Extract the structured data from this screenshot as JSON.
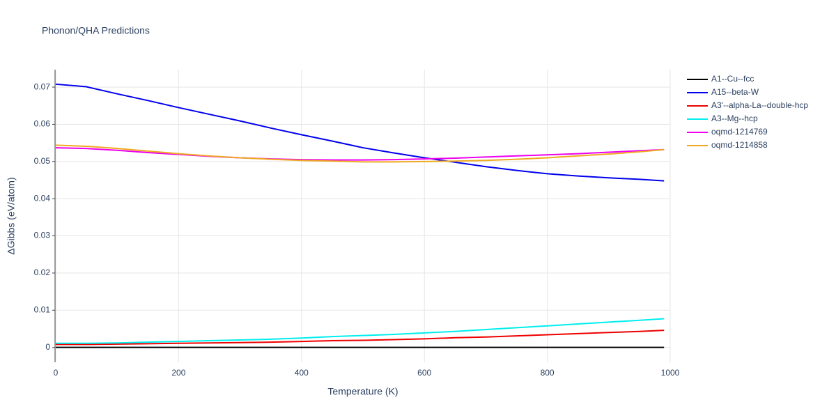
{
  "chart_data": {
    "type": "line",
    "title": "Phonon/QHA Predictions",
    "x_label": "Temperature (K)",
    "y_label": "ΔGibbs (eV/atom)",
    "x": [
      0,
      50,
      100,
      150,
      200,
      250,
      300,
      350,
      400,
      450,
      500,
      550,
      600,
      650,
      700,
      750,
      800,
      850,
      900,
      950,
      990
    ],
    "series": [
      {
        "name": "A1--Cu--fcc",
        "color": "#000000",
        "values": [
          0,
          0,
          0,
          0,
          0,
          0,
          0,
          0,
          0,
          0,
          0,
          0,
          0,
          0,
          0,
          0,
          0,
          0,
          0,
          0,
          0
        ]
      },
      {
        "name": "A15--beta-W",
        "color": "#0000ee",
        "values": [
          0.0708,
          0.0701,
          0.0682,
          0.0664,
          0.0645,
          0.0627,
          0.0609,
          0.059,
          0.0572,
          0.0555,
          0.0537,
          0.0523,
          0.051,
          0.0498,
          0.0486,
          0.0476,
          0.0467,
          0.0461,
          0.0456,
          0.0452,
          0.0448
        ]
      },
      {
        "name": "A3'--alpha-La--double-hcp",
        "color": "#ee0000",
        "values": [
          0.0008,
          0.0008,
          0.0009,
          0.001,
          0.0011,
          0.0012,
          0.0013,
          0.0014,
          0.0016,
          0.0018,
          0.0019,
          0.0021,
          0.0023,
          0.0026,
          0.0028,
          0.0031,
          0.0034,
          0.0037,
          0.004,
          0.0043,
          0.0046
        ]
      },
      {
        "name": "A3--Mg--hcp",
        "color": "#00eeee",
        "values": [
          0.0011,
          0.0011,
          0.0012,
          0.0014,
          0.0016,
          0.0018,
          0.002,
          0.0022,
          0.0025,
          0.0029,
          0.0032,
          0.0035,
          0.0039,
          0.0043,
          0.0048,
          0.0053,
          0.0058,
          0.0063,
          0.0068,
          0.0073,
          0.0077
        ]
      },
      {
        "name": "oqmd-1214769",
        "color": "#ee00ee",
        "values": [
          0.0537,
          0.0535,
          0.053,
          0.0524,
          0.0519,
          0.0514,
          0.051,
          0.0507,
          0.0505,
          0.0504,
          0.0504,
          0.0505,
          0.0507,
          0.0509,
          0.0512,
          0.0515,
          0.0518,
          0.0521,
          0.0525,
          0.0529,
          0.0532
        ]
      },
      {
        "name": "oqmd-1214858",
        "color": "#eeaa22",
        "values": [
          0.0544,
          0.0541,
          0.0535,
          0.0528,
          0.0521,
          0.0515,
          0.051,
          0.0506,
          0.0503,
          0.0501,
          0.0499,
          0.0499,
          0.05,
          0.0501,
          0.0503,
          0.0506,
          0.051,
          0.0515,
          0.052,
          0.0526,
          0.0532
        ]
      }
    ],
    "xlim": [
      0,
      1000
    ],
    "xticks": [
      0,
      200,
      400,
      600,
      800,
      1000
    ],
    "ylim": [
      -0.004,
      0.0747
    ],
    "yticks": [
      0,
      0.01,
      0.02,
      0.03,
      0.04,
      0.05,
      0.06,
      0.07
    ],
    "grid": true,
    "legend": "right"
  }
}
